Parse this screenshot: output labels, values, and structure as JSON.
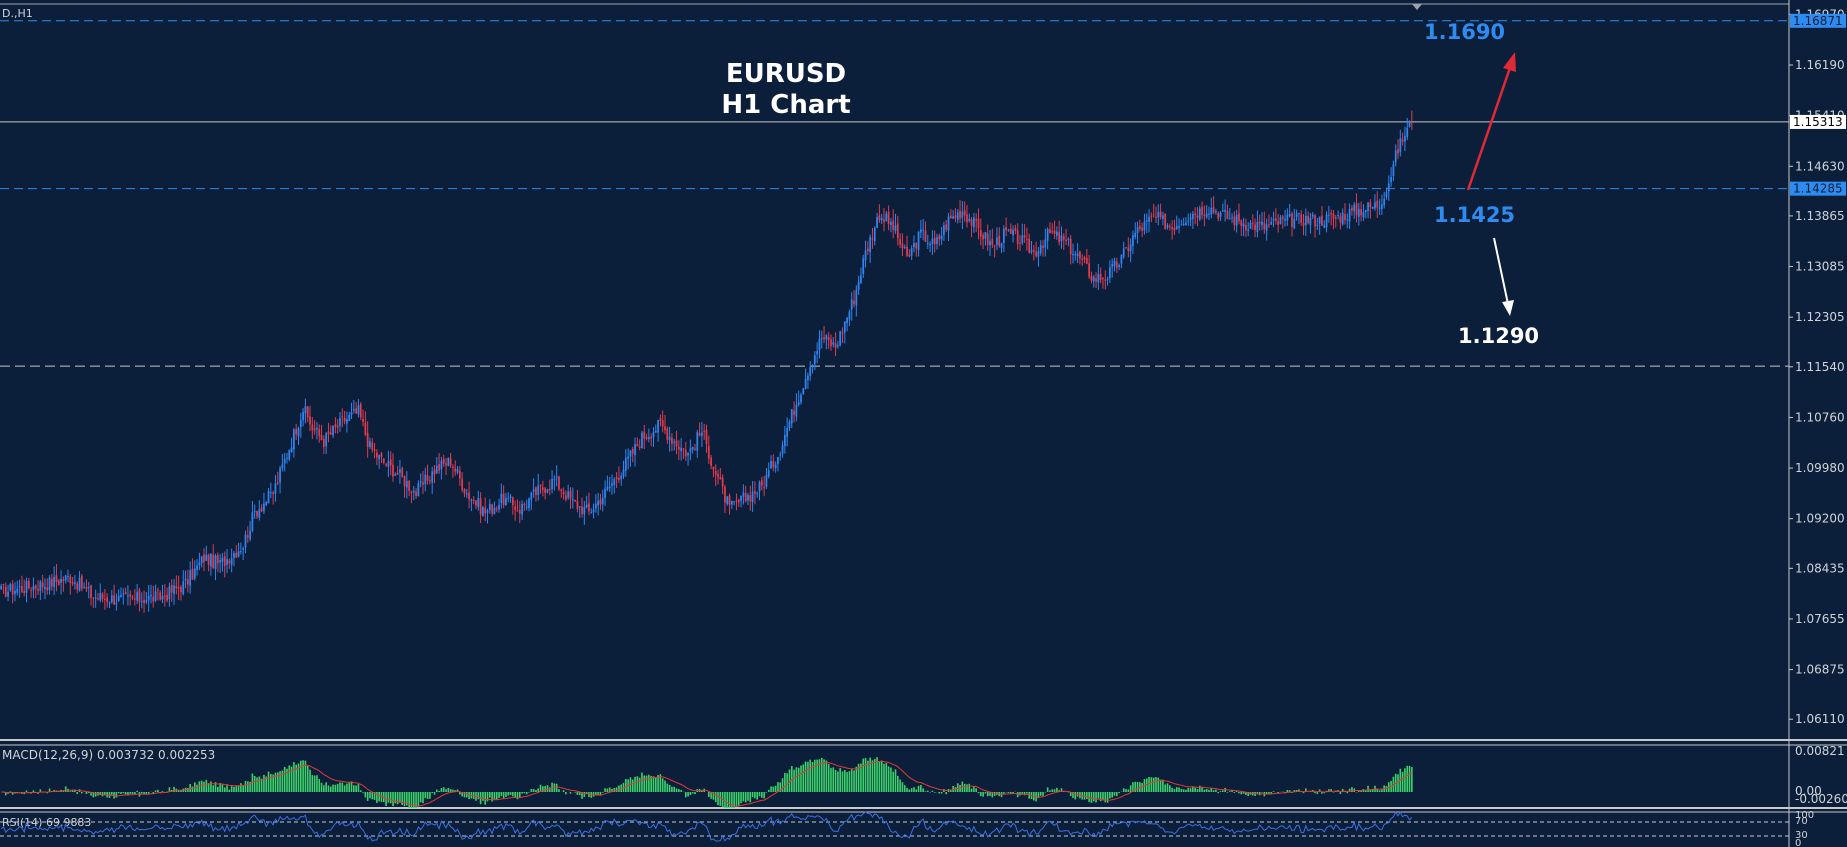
{
  "symbol_label": "D.,H1",
  "title_line1": "EURUSD",
  "title_line2": "H1 Chart",
  "annotations": {
    "target_up": "1.1690",
    "pivot": "1.1425",
    "target_down": "1.1290"
  },
  "colors": {
    "background": "#0b1e3a",
    "bull_candle": "#2f86f0",
    "bear_candle": "#e23c4e",
    "annotation_blue": "#2e8cf0",
    "arrow_up": "#e02a35",
    "macd_histogram": "#3bd26a",
    "macd_signal": "#e53935",
    "rsi_line": "#3d6fe0"
  },
  "chart_data": {
    "type": "candlestick",
    "symbol": "EURUSD",
    "timeframe": "H1",
    "ylim": [
      1.0579,
      1.1713
    ],
    "ytick_labels": [
      "1.16970",
      "1.16190",
      "1.15410",
      "1.14630",
      "1.13865",
      "1.13085",
      "1.12305",
      "1.11540",
      "1.10760",
      "1.09980",
      "1.09200",
      "1.08435",
      "1.07655",
      "1.06875",
      "1.06110"
    ],
    "price_levels": [
      {
        "label": "1.16871",
        "value": 1.16871,
        "style": "dashed",
        "color": "#2e8cf0"
      },
      {
        "label": "1.15313",
        "value": 1.15313,
        "style": "solid",
        "color": "#c8c8c8"
      },
      {
        "label": "1.14285",
        "value": 1.14285,
        "style": "dashed",
        "color": "#2e8cf0"
      },
      {
        "label": "",
        "value": 1.1155,
        "style": "dashed",
        "color": "#c8c8c8"
      }
    ],
    "price_path_hourly_anchors": [
      [
        0,
        1.0808
      ],
      [
        20,
        1.082
      ],
      [
        30,
        1.083
      ],
      [
        40,
        1.08
      ],
      [
        55,
        1.0795
      ],
      [
        70,
        1.08
      ],
      [
        80,
        1.082
      ],
      [
        88,
        1.086
      ],
      [
        95,
        1.085
      ],
      [
        105,
        1.088
      ],
      [
        110,
        1.093
      ],
      [
        118,
        1.096
      ],
      [
        125,
        1.103
      ],
      [
        131,
        1.109
      ],
      [
        135,
        1.106
      ],
      [
        140,
        1.104
      ],
      [
        148,
        1.107
      ],
      [
        155,
        1.1085
      ],
      [
        160,
        1.103
      ],
      [
        165,
        1.101
      ],
      [
        172,
        1.099
      ],
      [
        180,
        1.096
      ],
      [
        188,
        1.0995
      ],
      [
        195,
        1.101
      ],
      [
        202,
        1.096
      ],
      [
        210,
        1.093
      ],
      [
        218,
        1.095
      ],
      [
        225,
        1.0935
      ],
      [
        232,
        1.096
      ],
      [
        240,
        1.098
      ],
      [
        248,
        1.0945
      ],
      [
        255,
        1.093
      ],
      [
        262,
        1.096
      ],
      [
        270,
        1.1
      ],
      [
        278,
        1.1045
      ],
      [
        286,
        1.1065
      ],
      [
        292,
        1.104
      ],
      [
        298,
        1.102
      ],
      [
        304,
        1.1055
      ],
      [
        310,
        1.099
      ],
      [
        316,
        1.0935
      ],
      [
        322,
        1.095
      ],
      [
        330,
        1.097
      ],
      [
        337,
        1.102
      ],
      [
        343,
        1.108
      ],
      [
        350,
        1.115
      ],
      [
        356,
        1.12
      ],
      [
        362,
        1.1185
      ],
      [
        370,
        1.126
      ],
      [
        375,
        1.133
      ],
      [
        381,
        1.139
      ],
      [
        387,
        1.137
      ],
      [
        393,
        1.132
      ],
      [
        399,
        1.136
      ],
      [
        405,
        1.134
      ],
      [
        411,
        1.138
      ],
      [
        417,
        1.1395
      ],
      [
        423,
        1.137
      ],
      [
        430,
        1.134
      ],
      [
        436,
        1.136
      ],
      [
        442,
        1.135
      ],
      [
        448,
        1.133
      ],
      [
        455,
        1.136
      ],
      [
        462,
        1.1345
      ],
      [
        468,
        1.132
      ],
      [
        474,
        1.129
      ],
      [
        480,
        1.1295
      ],
      [
        486,
        1.132
      ],
      [
        492,
        1.136
      ],
      [
        500,
        1.1385
      ],
      [
        508,
        1.137
      ],
      [
        516,
        1.139
      ],
      [
        524,
        1.14
      ],
      [
        532,
        1.1385
      ],
      [
        540,
        1.1375
      ],
      [
        548,
        1.137
      ],
      [
        556,
        1.1378
      ],
      [
        564,
        1.1382
      ],
      [
        572,
        1.138
      ],
      [
        580,
        1.1385
      ],
      [
        588,
        1.1395
      ],
      [
        594,
        1.14
      ],
      [
        598,
        1.1405
      ],
      [
        602,
        1.144
      ],
      [
        606,
        1.149
      ],
      [
        610,
        1.152
      ],
      [
        612,
        1.153
      ]
    ],
    "indicators": [
      {
        "name": "MACD",
        "label": "MACD(12,26,9) 0.003732 0.002253",
        "ytick_labels": [
          "0.00821",
          "0.00",
          "-0.002603"
        ]
      },
      {
        "name": "RSI",
        "label": "RSI(14) 69.9883",
        "ytick_labels": [
          "100",
          "70",
          "30",
          "0"
        ]
      }
    ]
  }
}
